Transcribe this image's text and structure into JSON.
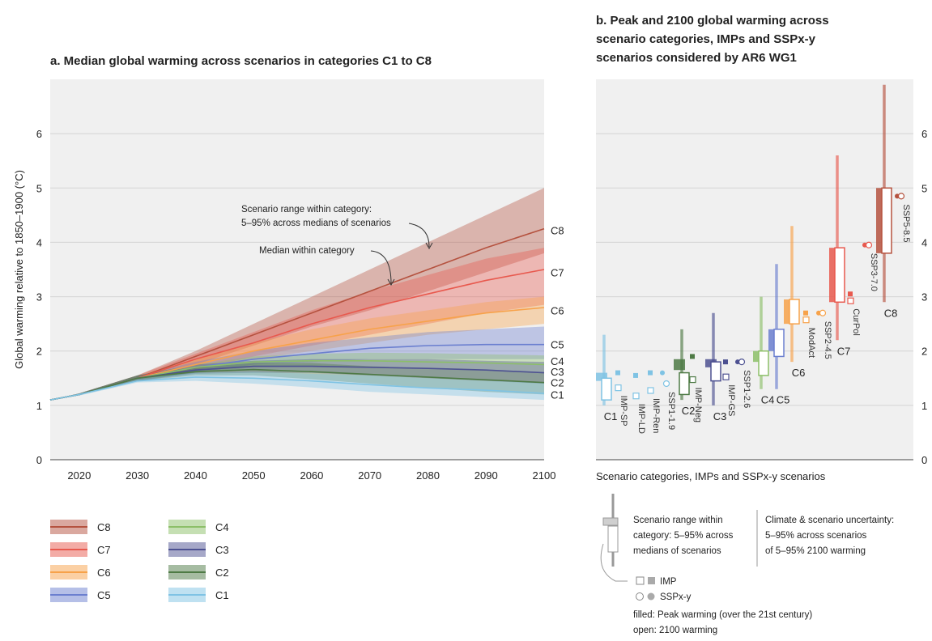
{
  "panel_a_title": "a. Median global warming across scenarios in categories C1 to C8",
  "panel_b_title_lines": [
    "b. Peak and 2100 global warming across",
    "scenario categories, IMPs and SSPx-y",
    "scenarios considered by AR6 WG1"
  ],
  "ylabel": "Global warming relative to 1850–1900 (°C)",
  "panel_b_xlabel": "Scenario categories, IMPs and SSPx-y scenarios",
  "annotation_range_lines": [
    "Scenario range within category:",
    "5–95% across medians of scenarios"
  ],
  "annotation_median": "Median within category",
  "key": {
    "range_lines": [
      "Scenario range within",
      "category: 5–95% across",
      "medians of scenarios"
    ],
    "uncertainty_lines": [
      "Climate & scenario uncertainty:",
      "5–95% across scenarios",
      "of 5–95% 2100 warming"
    ],
    "imp": "IMP",
    "sspxy": "SSPx-y",
    "filled": "filled: Peak warming (over the 21st century)",
    "open": "open: 2100 warming"
  },
  "colors": {
    "C1": "#7fc3e4",
    "C2": "#4e7a45",
    "C3": "#4d5191",
    "C4": "#8cbf68",
    "C5": "#6b7fcf",
    "C6": "#f7a24a",
    "C7": "#e8594e",
    "C8": "#b5523f"
  },
  "chart_data": [
    {
      "type": "area",
      "title": "a. Median global warming across scenarios in categories C1 to C8",
      "ylabel": "Global warming relative to 1850–1900 (°C)",
      "xlim": [
        2015,
        2100
      ],
      "ylim": [
        0,
        7
      ],
      "x_ticks": [
        2020,
        2030,
        2040,
        2050,
        2060,
        2070,
        2080,
        2090,
        2100
      ],
      "y_ticks": [
        0,
        1,
        2,
        3,
        4,
        5,
        6
      ],
      "grid": true,
      "legend_position": "bottom",
      "series": [
        {
          "name": "C8",
          "x": [
            2015,
            2020,
            2030,
            2040,
            2050,
            2060,
            2070,
            2080,
            2090,
            2100
          ],
          "median": [
            1.1,
            1.2,
            1.5,
            1.9,
            2.3,
            2.7,
            3.1,
            3.5,
            3.9,
            4.25
          ],
          "low": [
            1.1,
            1.2,
            1.45,
            1.75,
            2.1,
            2.45,
            2.75,
            3.1,
            3.45,
            3.8
          ],
          "high": [
            1.1,
            1.22,
            1.55,
            2.0,
            2.5,
            3.0,
            3.5,
            4.0,
            4.5,
            5.0
          ]
        },
        {
          "name": "C7",
          "x": [
            2015,
            2020,
            2030,
            2040,
            2050,
            2060,
            2070,
            2080,
            2090,
            2100
          ],
          "median": [
            1.1,
            1.2,
            1.5,
            1.85,
            2.15,
            2.5,
            2.8,
            3.05,
            3.3,
            3.5
          ],
          "low": [
            1.1,
            1.2,
            1.45,
            1.65,
            1.9,
            2.1,
            2.3,
            2.5,
            2.7,
            2.85
          ],
          "high": [
            1.1,
            1.22,
            1.55,
            1.95,
            2.35,
            2.75,
            3.1,
            3.4,
            3.7,
            3.9
          ]
        },
        {
          "name": "C6",
          "x": [
            2015,
            2020,
            2030,
            2040,
            2050,
            2060,
            2070,
            2080,
            2090,
            2100
          ],
          "median": [
            1.1,
            1.2,
            1.5,
            1.75,
            2.0,
            2.2,
            2.4,
            2.55,
            2.7,
            2.8
          ],
          "low": [
            1.1,
            1.2,
            1.45,
            1.65,
            1.85,
            2.0,
            2.15,
            2.3,
            2.4,
            2.5
          ],
          "high": [
            1.1,
            1.22,
            1.55,
            1.85,
            2.15,
            2.4,
            2.6,
            2.75,
            2.9,
            3.0
          ]
        },
        {
          "name": "C5",
          "x": [
            2015,
            2020,
            2030,
            2040,
            2050,
            2060,
            2070,
            2080,
            2090,
            2100
          ],
          "median": [
            1.1,
            1.2,
            1.5,
            1.7,
            1.85,
            1.95,
            2.05,
            2.1,
            2.12,
            2.12
          ],
          "low": [
            1.1,
            1.2,
            1.45,
            1.6,
            1.75,
            1.8,
            1.85,
            1.85,
            1.85,
            1.85
          ],
          "high": [
            1.1,
            1.22,
            1.55,
            1.8,
            2.0,
            2.15,
            2.25,
            2.35,
            2.4,
            2.45
          ]
        },
        {
          "name": "C4",
          "x": [
            2015,
            2020,
            2030,
            2040,
            2050,
            2060,
            2070,
            2080,
            2090,
            2100
          ],
          "median": [
            1.1,
            1.2,
            1.5,
            1.7,
            1.8,
            1.82,
            1.82,
            1.8,
            1.78,
            1.75
          ],
          "low": [
            1.1,
            1.2,
            1.45,
            1.6,
            1.7,
            1.72,
            1.7,
            1.68,
            1.66,
            1.6
          ],
          "high": [
            1.1,
            1.22,
            1.55,
            1.75,
            1.9,
            1.95,
            1.97,
            1.96,
            1.94,
            1.92
          ]
        },
        {
          "name": "C3",
          "x": [
            2015,
            2020,
            2030,
            2040,
            2050,
            2060,
            2070,
            2080,
            2090,
            2100
          ],
          "median": [
            1.1,
            1.2,
            1.5,
            1.65,
            1.72,
            1.72,
            1.7,
            1.68,
            1.65,
            1.6
          ],
          "low": [
            1.1,
            1.2,
            1.45,
            1.58,
            1.6,
            1.6,
            1.55,
            1.5,
            1.45,
            1.4
          ],
          "high": [
            1.1,
            1.22,
            1.55,
            1.75,
            1.82,
            1.85,
            1.85,
            1.85,
            1.82,
            1.8
          ]
        },
        {
          "name": "C2",
          "x": [
            2015,
            2020,
            2030,
            2040,
            2050,
            2060,
            2070,
            2080,
            2090,
            2100
          ],
          "median": [
            1.1,
            1.2,
            1.5,
            1.62,
            1.66,
            1.62,
            1.57,
            1.52,
            1.47,
            1.42
          ],
          "low": [
            1.1,
            1.2,
            1.45,
            1.55,
            1.55,
            1.48,
            1.4,
            1.32,
            1.25,
            1.2
          ],
          "high": [
            1.1,
            1.22,
            1.55,
            1.7,
            1.78,
            1.78,
            1.72,
            1.68,
            1.65,
            1.6
          ]
        },
        {
          "name": "C1",
          "x": [
            2015,
            2020,
            2030,
            2040,
            2050,
            2060,
            2070,
            2080,
            2090,
            2100
          ],
          "median": [
            1.1,
            1.2,
            1.45,
            1.52,
            1.5,
            1.45,
            1.38,
            1.32,
            1.28,
            1.22
          ],
          "low": [
            1.1,
            1.18,
            1.42,
            1.45,
            1.4,
            1.33,
            1.25,
            1.2,
            1.15,
            1.1
          ],
          "high": [
            1.1,
            1.22,
            1.5,
            1.6,
            1.62,
            1.58,
            1.55,
            1.5,
            1.45,
            1.42
          ]
        }
      ]
    },
    {
      "type": "box",
      "title": "b. Peak and 2100 global warming across scenario categories, IMPs and SSPx-y scenarios considered by AR6 WG1",
      "xlabel": "Scenario categories, IMPs and SSPx-y scenarios",
      "ylim": [
        0,
        7
      ],
      "y_ticks": [
        0,
        1,
        2,
        3,
        4,
        5,
        6
      ],
      "categories": [
        {
          "name": "C1",
          "whisker": [
            1.0,
            2.3
          ],
          "peak_box": [
            1.45,
            1.6
          ],
          "box_2100": [
            1.1,
            1.5
          ]
        },
        {
          "name": "C2",
          "whisker": [
            1.1,
            2.4
          ],
          "peak_box": [
            1.65,
            1.85
          ],
          "box_2100": [
            1.2,
            1.6
          ]
        },
        {
          "name": "C3",
          "whisker": [
            1.0,
            2.7
          ],
          "peak_box": [
            1.7,
            1.85
          ],
          "box_2100": [
            1.45,
            1.8
          ]
        },
        {
          "name": "C4",
          "whisker": [
            1.3,
            3.0
          ],
          "peak_box": [
            1.8,
            2.0
          ],
          "box_2100": [
            1.55,
            2.0
          ]
        },
        {
          "name": "C5",
          "whisker": [
            1.3,
            3.6
          ],
          "peak_box": [
            2.0,
            2.4
          ],
          "box_2100": [
            1.9,
            2.4
          ]
        },
        {
          "name": "C6",
          "whisker": [
            1.8,
            4.3
          ],
          "peak_box": [
            2.5,
            2.95
          ],
          "box_2100": [
            2.5,
            2.95
          ]
        },
        {
          "name": "C7",
          "whisker": [
            2.2,
            5.6
          ],
          "peak_box": [
            2.9,
            3.9
          ],
          "box_2100": [
            2.9,
            3.9
          ]
        },
        {
          "name": "C8",
          "whisker": [
            2.9,
            6.9
          ],
          "peak_box": [
            3.8,
            5.0
          ],
          "box_2100": [
            3.8,
            5.0
          ]
        }
      ],
      "imps": [
        {
          "name": "IMP-SP",
          "peak": 1.6,
          "value_2100": 1.45
        },
        {
          "name": "IMP-LD",
          "peak": 1.55,
          "value_2100": 1.3
        },
        {
          "name": "IMP-Ren",
          "peak": 1.6,
          "value_2100": 1.4
        },
        {
          "name": "IMP-Neg",
          "peak": 1.9,
          "value_2100": 1.6
        },
        {
          "name": "IMP-GS",
          "peak": 1.8,
          "value_2100": 1.65
        },
        {
          "name": "ModAct",
          "peak": 2.7,
          "value_2100": 2.7
        },
        {
          "name": "CurPol",
          "peak": 3.05,
          "value_2100": 3.05
        }
      ],
      "sspxy": [
        {
          "name": "SSP1-1.9",
          "peak": 1.6,
          "value_2100": 1.4
        },
        {
          "name": "SSP1-2.6",
          "peak": 1.8,
          "value_2100": 1.8
        },
        {
          "name": "SSP2-4.5",
          "peak": 2.7,
          "value_2100": 2.7
        },
        {
          "name": "SSP3-7.0",
          "peak": 3.95,
          "value_2100": 3.95
        },
        {
          "name": "SSP5-8.5",
          "peak": 4.85,
          "value_2100": 4.85
        }
      ]
    }
  ]
}
